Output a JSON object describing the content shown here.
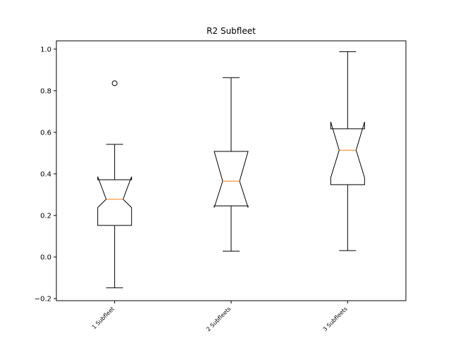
{
  "chart_data": {
    "type": "boxplot",
    "title": "R2 Subfleet",
    "xlabel": "",
    "ylabel": "",
    "ylim": [
      -0.21,
      1.04
    ],
    "yticks": [
      -0.2,
      0.0,
      0.2,
      0.4,
      0.6,
      0.8,
      1.0
    ],
    "ytick_labels": [
      "−0.2",
      "0.0",
      "0.2",
      "0.4",
      "0.6",
      "0.8",
      "1.0"
    ],
    "notched": true,
    "grid": false,
    "categories": [
      "1 Subfleet",
      "2 Subfleets",
      "3 Subfleets"
    ],
    "boxes": [
      {
        "category": "1 Subfleet",
        "whisker_low": -0.148,
        "q1": 0.152,
        "median": 0.278,
        "q3": 0.372,
        "whisker_high": 0.542,
        "notch_low": 0.238,
        "notch_high": 0.387,
        "outliers": [
          0.836
        ]
      },
      {
        "category": "2 Subfleets",
        "whisker_low": 0.028,
        "q1": 0.246,
        "median": 0.365,
        "q3": 0.508,
        "whisker_high": 0.863,
        "notch_low": 0.238,
        "notch_high": 0.508,
        "outliers": []
      },
      {
        "category": "3 Subfleets",
        "whisker_low": 0.031,
        "q1": 0.348,
        "median": 0.514,
        "q3": 0.617,
        "whisker_high": 0.988,
        "notch_low": 0.382,
        "notch_high": 0.65,
        "outliers": []
      }
    ],
    "colors": {
      "box": "#000000",
      "median": "#ff7f0e",
      "outlier": "#000000"
    }
  }
}
